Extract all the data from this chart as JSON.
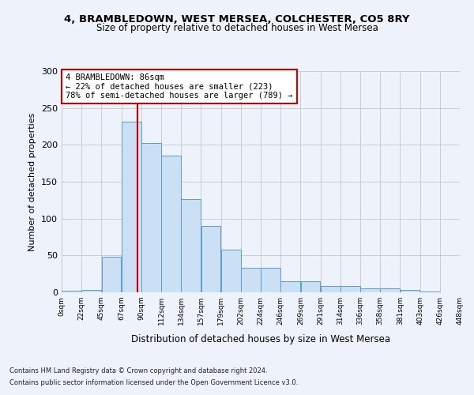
{
  "title1": "4, BRAMBLEDOWN, WEST MERSEA, COLCHESTER, CO5 8RY",
  "title2": "Size of property relative to detached houses in West Mersea",
  "xlabel": "Distribution of detached houses by size in West Mersea",
  "ylabel": "Number of detached properties",
  "footnote1": "Contains HM Land Registry data © Crown copyright and database right 2024.",
  "footnote2": "Contains public sector information licensed under the Open Government Licence v3.0.",
  "annotation_title": "4 BRAMBLEDOWN: 86sqm",
  "annotation_line1": "← 22% of detached houses are smaller (223)",
  "annotation_line2": "78% of semi-detached houses are larger (789) →",
  "property_line_x": 86,
  "bar_width": 22.5,
  "bin_edges": [
    0,
    22.5,
    45,
    67.5,
    90,
    112.5,
    135,
    157.5,
    180,
    202.5,
    225,
    247.5,
    270,
    292.5,
    315,
    337.5,
    360,
    382.5,
    405,
    427.5,
    450
  ],
  "bar_heights": [
    2,
    3,
    48,
    231,
    203,
    185,
    126,
    90,
    58,
    33,
    33,
    15,
    15,
    9,
    9,
    5,
    5,
    3,
    1,
    0,
    2
  ],
  "bar_color": "#cce0f5",
  "bar_edge_color": "#5b9bd5",
  "grid_color": "#cccccc",
  "vline_color": "#cc0000",
  "annotation_box_color": "#cc0000",
  "background_color": "#eef2fb",
  "tick_labels": [
    "0sqm",
    "22sqm",
    "45sqm",
    "67sqm",
    "90sqm",
    "112sqm",
    "134sqm",
    "157sqm",
    "179sqm",
    "202sqm",
    "224sqm",
    "246sqm",
    "269sqm",
    "291sqm",
    "314sqm",
    "336sqm",
    "358sqm",
    "381sqm",
    "403sqm",
    "426sqm",
    "448sqm"
  ],
  "ylim": [
    0,
    300
  ],
  "yticks": [
    0,
    50,
    100,
    150,
    200,
    250,
    300
  ]
}
